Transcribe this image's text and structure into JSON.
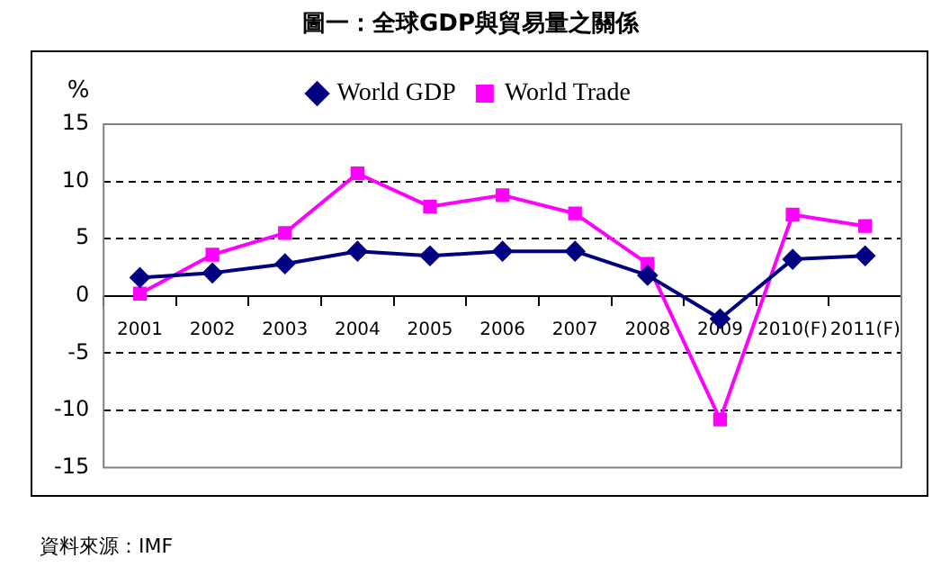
{
  "chart_data": {
    "type": "line",
    "title": "圖一：全球GDP與貿易量之關係",
    "ylabel": "%",
    "categories": [
      "2001",
      "2002",
      "2003",
      "2004",
      "2005",
      "2006",
      "2007",
      "2008",
      "2009",
      "2010(F)",
      "2011(F)"
    ],
    "series": [
      {
        "name": "World GDP",
        "color": "#000080",
        "marker": "diamond",
        "values": [
          1.6,
          2.0,
          2.8,
          3.9,
          3.5,
          3.9,
          3.9,
          1.8,
          -2.0,
          3.2,
          3.5
        ]
      },
      {
        "name": "World Trade",
        "color": "#ff00ff",
        "marker": "square",
        "values": [
          0.2,
          3.6,
          5.5,
          10.7,
          7.8,
          8.8,
          7.2,
          2.8,
          -10.8,
          7.1,
          6.1
        ]
      }
    ],
    "ylim": [
      -15,
      15
    ],
    "yticks": [
      -15,
      -10,
      -5,
      0,
      5,
      10,
      15
    ],
    "grid": "y",
    "legend": "top",
    "line_style": "solid",
    "annotations": [
      "資料來源：IMF"
    ]
  }
}
